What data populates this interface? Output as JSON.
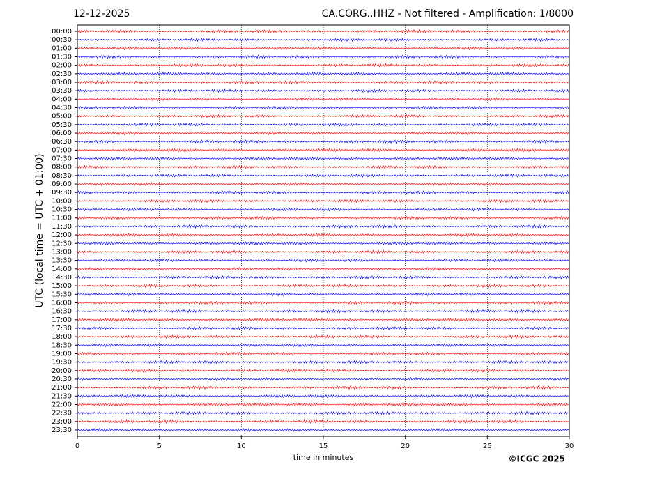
{
  "chart_data": {
    "type": "helicorder",
    "date": "12-12-2025",
    "title": "CA.CORG..HHZ - Not filtered - Amplification: 1/8000",
    "y_label": "UTC (local time = UTC + 01:00)",
    "x_label": "time in minutes",
    "copyright": "©ICGC 2025",
    "xlim": [
      0,
      30
    ],
    "xticks": [
      0,
      5,
      10,
      15,
      20,
      25,
      30
    ],
    "grid": true,
    "trace_colors": [
      "#ff0000",
      "#0000ff"
    ],
    "rows": [
      "00:00",
      "00:30",
      "01:00",
      "01:30",
      "02:00",
      "02:30",
      "03:00",
      "03:30",
      "04:00",
      "04:30",
      "05:00",
      "05:30",
      "06:00",
      "06:30",
      "07:00",
      "07:30",
      "08:00",
      "08:30",
      "09:00",
      "09:30",
      "10:00",
      "10:30",
      "11:00",
      "11:30",
      "12:00",
      "12:30",
      "13:00",
      "13:30",
      "14:00",
      "14:30",
      "15:00",
      "15:30",
      "16:00",
      "16:30",
      "17:00",
      "17:30",
      "18:00",
      "18:30",
      "19:00",
      "19:30",
      "20:00",
      "20:30",
      "21:00",
      "21:30",
      "22:00",
      "22:30",
      "23:00",
      "23:30"
    ]
  }
}
